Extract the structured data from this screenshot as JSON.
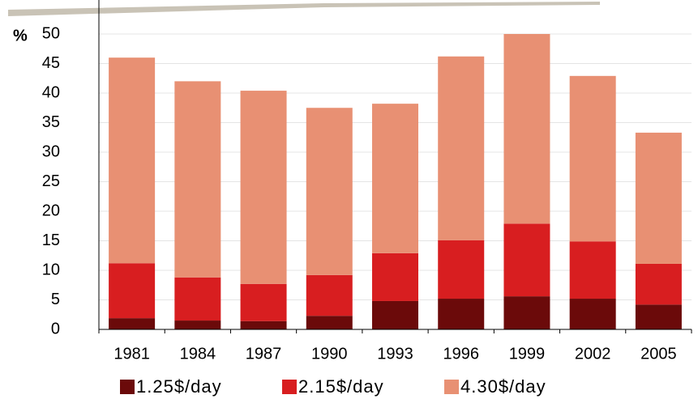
{
  "chart_data": {
    "type": "stacked_bar",
    "y_label": "%",
    "categories": [
      "1981",
      "1984",
      "1987",
      "1990",
      "1993",
      "1996",
      "1999",
      "2002",
      "2005"
    ],
    "series": [
      {
        "name": "1.25$/day",
        "color": "#6b0a0a",
        "values": [
          1.9,
          1.5,
          1.4,
          2.3,
          4.8,
          5.2,
          5.6,
          5.2,
          4.2
        ]
      },
      {
        "name": "2.15$/day",
        "color": "#d81e20",
        "values": [
          9.3,
          7.3,
          6.3,
          6.9,
          8.1,
          9.9,
          12.3,
          9.7,
          6.9
        ]
      },
      {
        "name": "4.30$/day",
        "color": "#e89073",
        "values": [
          34.8,
          33.2,
          32.7,
          28.3,
          25.3,
          31.1,
          32.1,
          28.0,
          22.2
        ]
      }
    ],
    "ylim": [
      0,
      50
    ],
    "yticks": [
      0,
      5,
      10,
      15,
      20,
      25,
      30,
      35,
      40,
      45,
      50
    ],
    "grid": true
  }
}
